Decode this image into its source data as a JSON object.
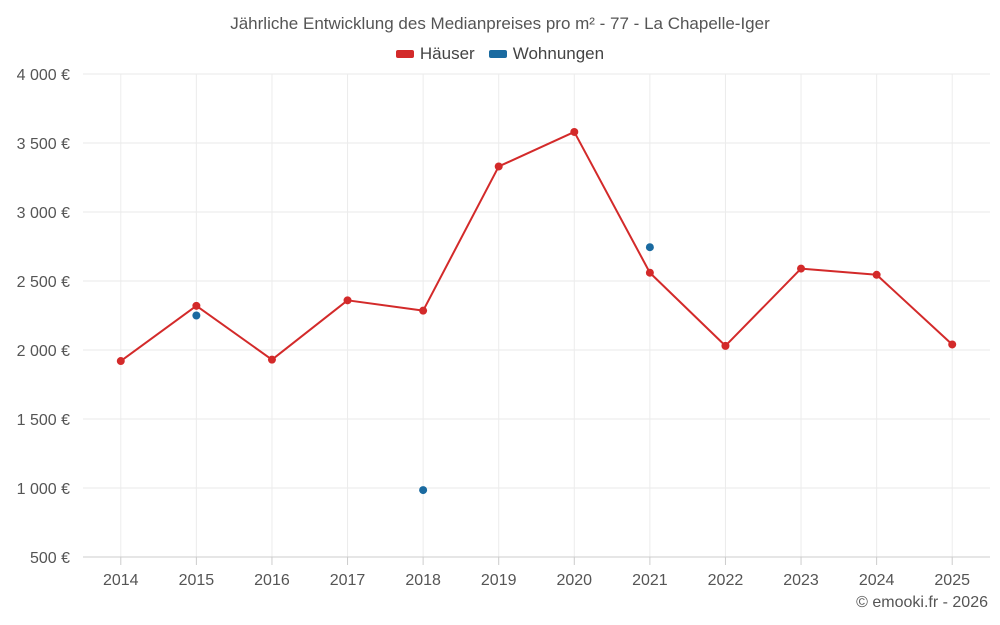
{
  "chart_data": {
    "type": "line",
    "title": "Jährliche Entwicklung des Medianpreises pro m² - 77 - La Chapelle-Iger",
    "categories": [
      "2014",
      "2015",
      "2016",
      "2017",
      "2018",
      "2019",
      "2020",
      "2021",
      "2022",
      "2023",
      "2024",
      "2025"
    ],
    "ylim": [
      500,
      4000
    ],
    "yticks": [
      500,
      1000,
      1500,
      2000,
      2500,
      3000,
      3500,
      4000
    ],
    "ytick_labels": [
      "500 €",
      "1 000 €",
      "1 500 €",
      "2 000 €",
      "2 500 €",
      "3 000 €",
      "3 500 €",
      "4 000 €"
    ],
    "grid": true,
    "legend_position": "top-center",
    "series": [
      {
        "name": "Häuser",
        "color": "#d32a2a",
        "show_line": true,
        "values": [
          1920,
          2320,
          1930,
          2360,
          2285,
          3330,
          3580,
          2560,
          2030,
          2590,
          2545,
          2040
        ]
      },
      {
        "name": "Wohnungen",
        "color": "#1a6aa0",
        "show_line": false,
        "values": [
          null,
          2250,
          null,
          null,
          985,
          null,
          null,
          2745,
          null,
          null,
          null,
          null
        ]
      }
    ]
  },
  "footer": {
    "credit": "© emooki.fr - 2026"
  }
}
